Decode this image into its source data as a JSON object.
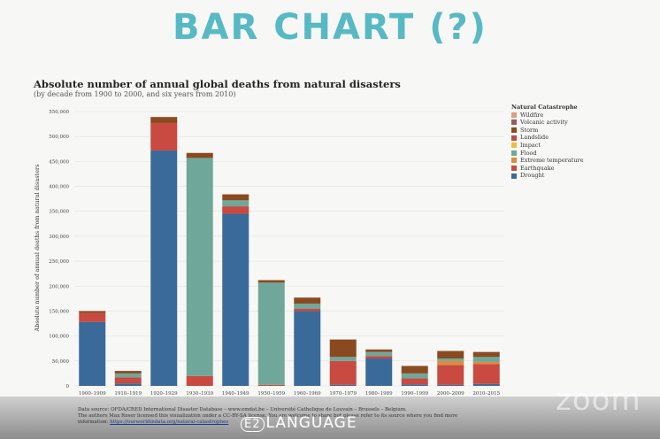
{
  "slide": {
    "title": "BAR CHART (?)"
  },
  "chart_data": {
    "type": "bar",
    "stacked": true,
    "title": "Absolute number of annual global deaths from natural disasters",
    "subtitle": "(by decade from 1900 to 2000, and six years from 2010)",
    "ylabel": "Absolute number of annual deaths from natural disasters",
    "ylim": [
      0,
      550000
    ],
    "yticks": [
      0,
      50000,
      100000,
      150000,
      200000,
      250000,
      300000,
      350000,
      400000,
      450000,
      500000,
      550000
    ],
    "ytick_labels": [
      "0",
      "50,000",
      "100,000",
      "150,000",
      "200,000",
      "250,000",
      "300,000",
      "350,000",
      "400,000",
      "450,000",
      "500,000",
      "550,000"
    ],
    "categories": [
      "1900–1909",
      "1910–1919",
      "1920–1929",
      "1930–1939",
      "1940–1949",
      "1950–1959",
      "1960–1969",
      "1970–1979",
      "1980–1989",
      "1990–1999",
      "2000–2009",
      "2010–2015"
    ],
    "legend_title": "Natural Catastrophe",
    "legend_position": "top-right",
    "series": [
      {
        "name": "Drought",
        "color": "#3a6a9a",
        "values": [
          128000,
          5000,
          472000,
          0,
          345000,
          0,
          150000,
          2000,
          55000,
          3000,
          2000,
          4000
        ]
      },
      {
        "name": "Earthquake",
        "color": "#c84a40",
        "values": [
          18000,
          12000,
          55000,
          20000,
          15000,
          2000,
          5000,
          48000,
          5000,
          12000,
          40000,
          40000
        ]
      },
      {
        "name": "Extreme temperature",
        "color": "#e08a3a",
        "values": [
          0,
          0,
          0,
          0,
          0,
          0,
          0,
          0,
          0,
          0,
          8000,
          4000
        ]
      },
      {
        "name": "Flood",
        "color": "#6fa89a",
        "values": [
          0,
          8000,
          0,
          437000,
          12000,
          205000,
          10000,
          8000,
          8000,
          10000,
          5000,
          10000
        ]
      },
      {
        "name": "Impact",
        "color": "#e8c040",
        "values": [
          0,
          0,
          0,
          0,
          0,
          0,
          0,
          0,
          0,
          0,
          0,
          0
        ]
      },
      {
        "name": "Landslide",
        "color": "#c04a4a",
        "values": [
          0,
          0,
          0,
          0,
          0,
          0,
          0,
          0,
          0,
          0,
          0,
          0
        ]
      },
      {
        "name": "Storm",
        "color": "#8a4a20",
        "values": [
          4000,
          5000,
          12000,
          10000,
          12000,
          5000,
          12000,
          35000,
          5000,
          15000,
          15000,
          10000
        ]
      },
      {
        "name": "Volcanic activity",
        "color": "#9a5a5a",
        "values": [
          0,
          0,
          0,
          0,
          0,
          0,
          0,
          0,
          0,
          0,
          0,
          0
        ]
      },
      {
        "name": "Wildfire",
        "color": "#d8a080",
        "values": [
          0,
          0,
          0,
          0,
          0,
          0,
          0,
          0,
          0,
          0,
          0,
          0
        ]
      }
    ],
    "legend_items": [
      {
        "name": "Wildfire",
        "color": "#d8a080"
      },
      {
        "name": "Volcanic activity",
        "color": "#9a5a5a"
      },
      {
        "name": "Storm",
        "color": "#8a4a20"
      },
      {
        "name": "Landslide",
        "color": "#c04a4a"
      },
      {
        "name": "Impact",
        "color": "#e8c040"
      },
      {
        "name": "Flood",
        "color": "#6fa89a"
      },
      {
        "name": "Extreme temperature",
        "color": "#e08a3a"
      },
      {
        "name": "Earthquake",
        "color": "#c84a40"
      },
      {
        "name": "Drought",
        "color": "#3a6a9a"
      }
    ],
    "source_text": "Data source: OFDA/CRED International Disaster Database – www.emdat.be – Université Catholique de Louvain – Brussels – Belgium.",
    "source_note": "The authors Max Roser licensed this visualization under a CC-BY-SA license. You are welcome to share but please refer to its source where you find more",
    "source_info_label": "information:",
    "source_link": "https://ourworldindata.org/natural-catastrophes"
  },
  "branding": {
    "logo_mark": "E2",
    "logo_text": "LANGUAGE",
    "watermark": "zoom"
  }
}
